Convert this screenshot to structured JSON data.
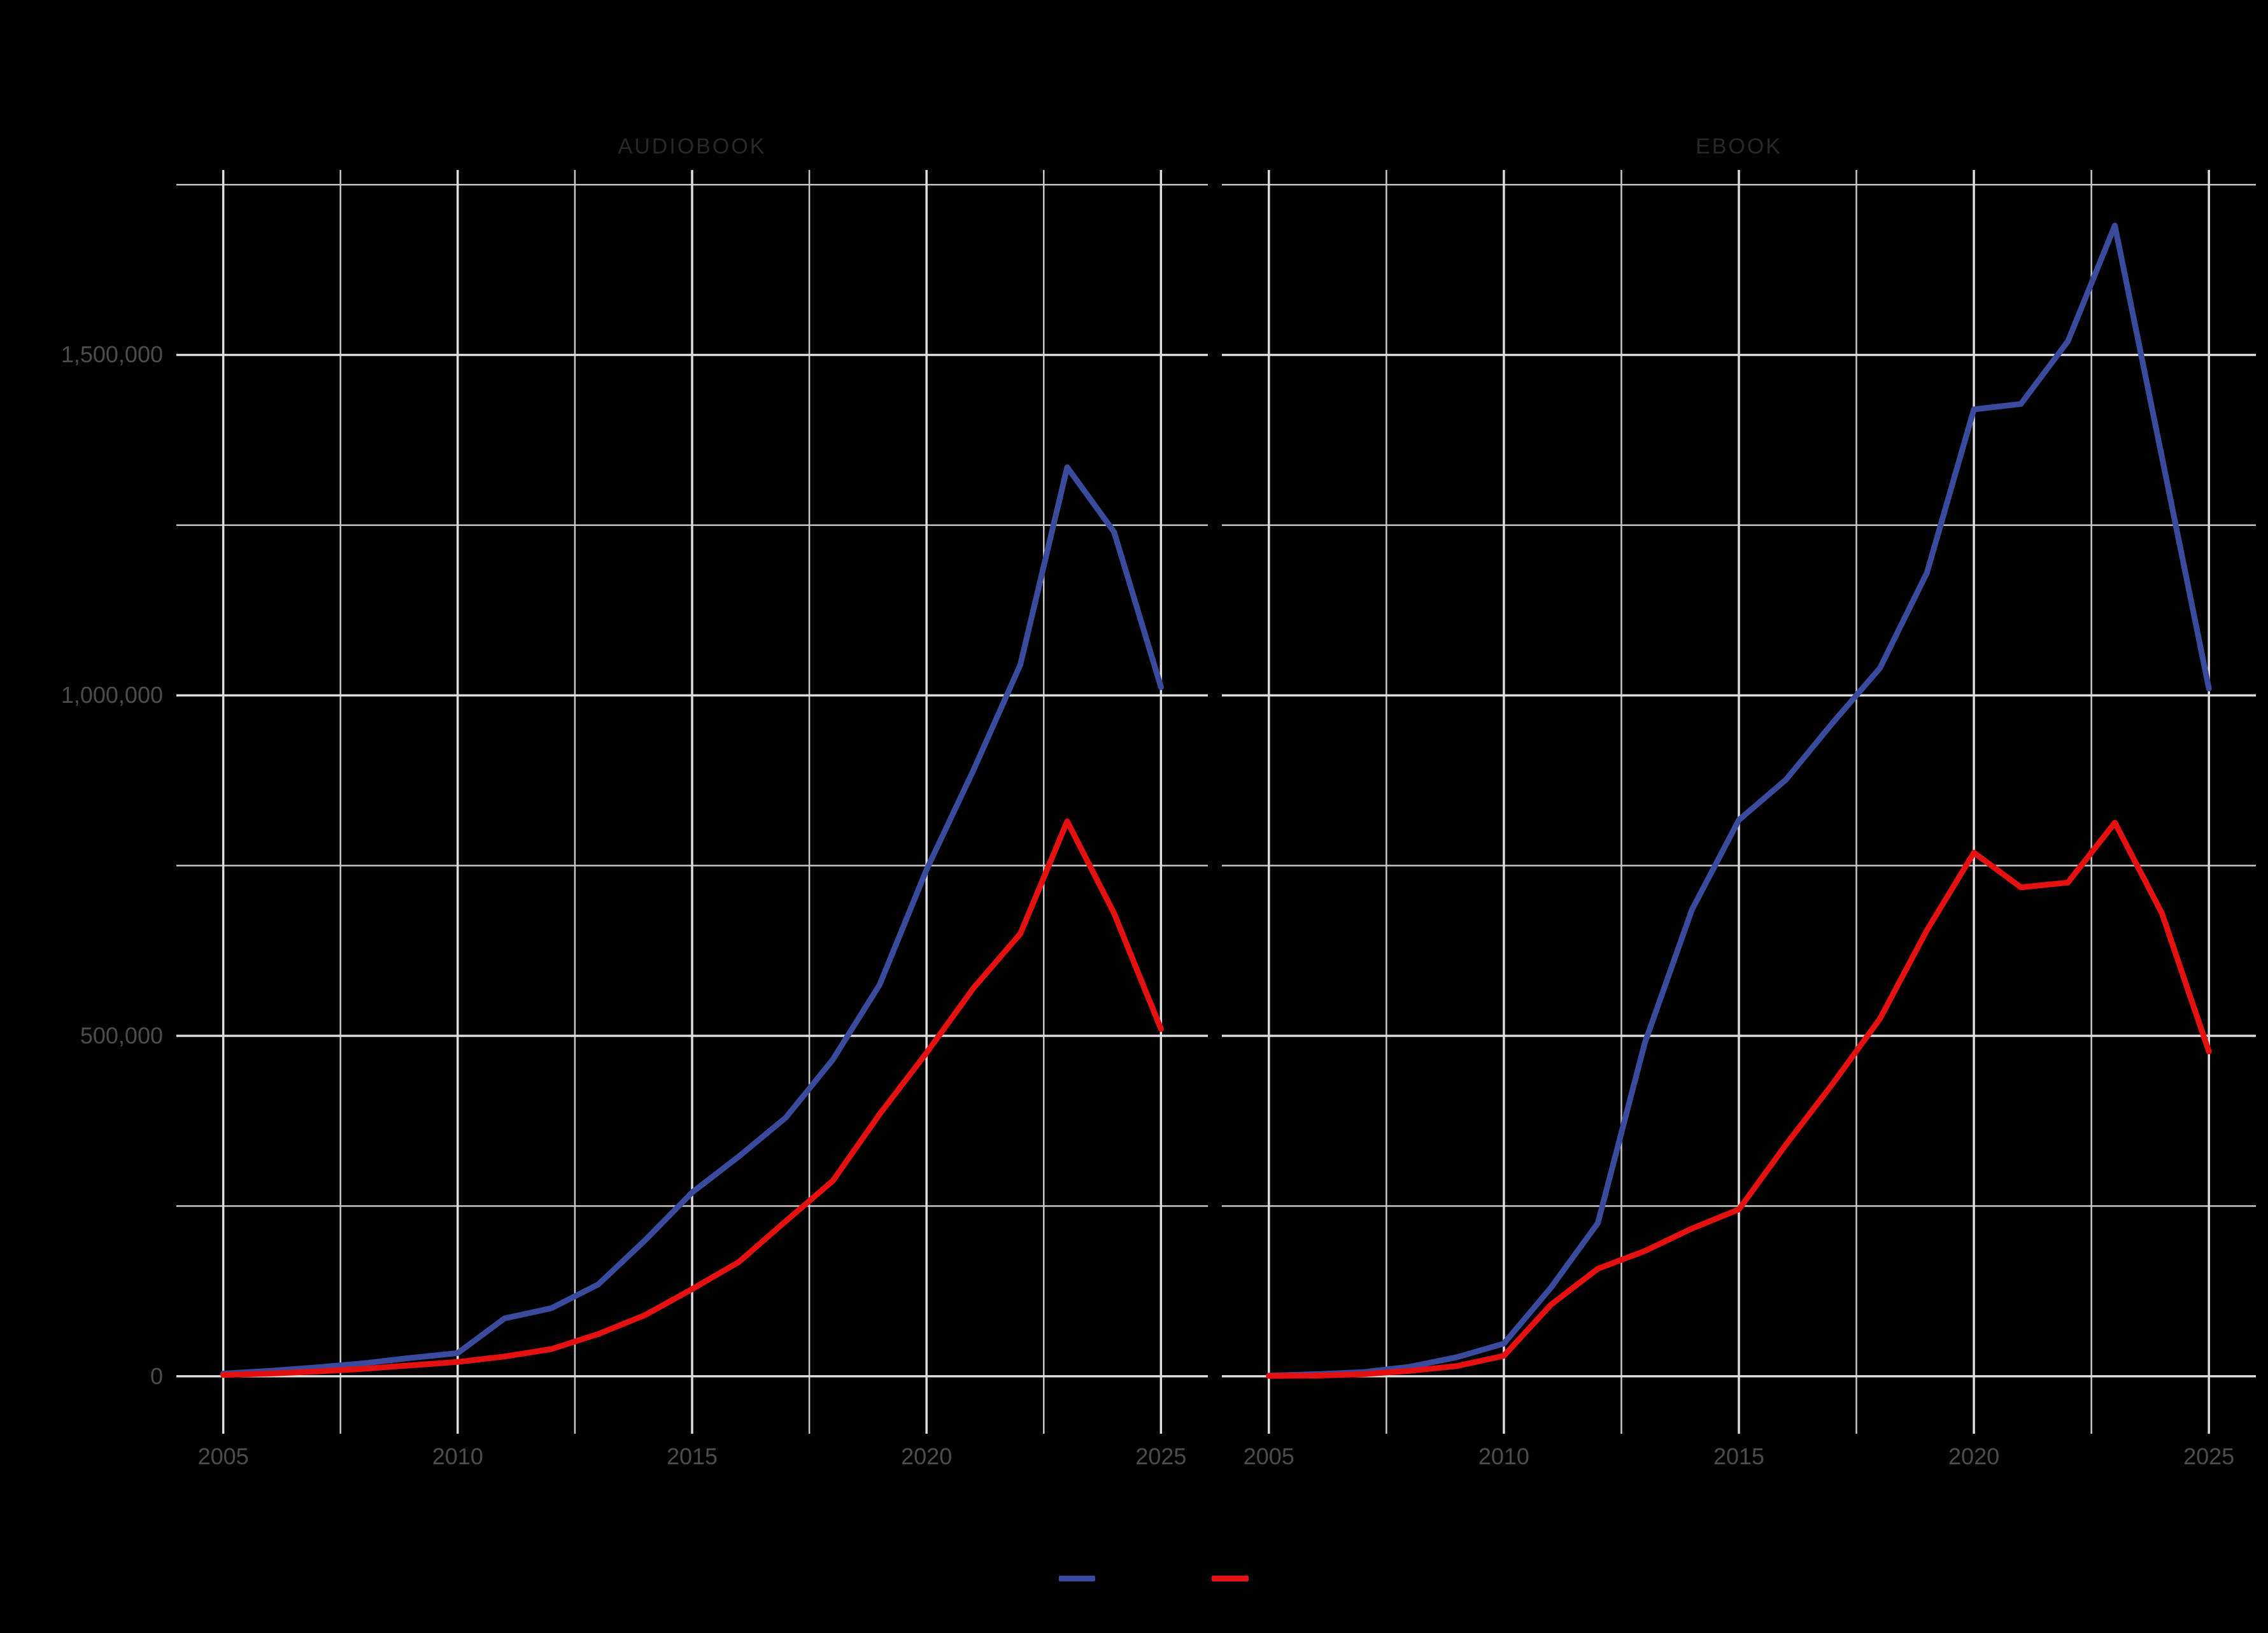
{
  "figure": {
    "background_color": "#000000",
    "gridline_major_color": "#dedede",
    "gridline_minor_color": "#c9c9c9",
    "axis_text_color": "#4c4c4c",
    "strip_title_color": "#282828"
  },
  "axes": {
    "y_tick_labels": [
      "0",
      "500,000",
      "1,000,000",
      "1,500,000"
    ],
    "x_tick_labels": [
      "2005",
      "2010",
      "2015",
      "2020",
      "2025"
    ]
  },
  "legend": {
    "items": [
      {
        "label": "",
        "color": "#3A4A9C"
      },
      {
        "label": "",
        "color": "#E51010"
      }
    ],
    "position": "bottom"
  },
  "chart_data": {
    "type": "line",
    "title": "",
    "xlabel": "",
    "ylabel": "",
    "x": [
      2005,
      2006,
      2007,
      2008,
      2009,
      2010,
      2011,
      2012,
      2013,
      2014,
      2015,
      2016,
      2017,
      2018,
      2019,
      2020,
      2021,
      2022,
      2023,
      2024,
      2025
    ],
    "x_axis_major_ticks": [
      2005,
      2010,
      2015,
      2020,
      2025
    ],
    "x_axis_minor_ticks": [
      2007.5,
      2012.5,
      2017.5,
      2022.5
    ],
    "y_axis_major_ticks": [
      0,
      500000,
      1000000,
      1500000
    ],
    "y_axis_minor_ticks": [
      250000,
      750000,
      1250000,
      1750000
    ],
    "y_axis_major_labels": [
      "0",
      "500,000",
      "1,000,000",
      "1,500,000"
    ],
    "ylim": [
      0,
      1771600
    ],
    "grid": {
      "show_major": true,
      "show_minor": true,
      "background": "#000000"
    },
    "legend_position": "bottom",
    "facets": [
      {
        "title": "AUDIOBOOK",
        "series": [
          {
            "name": "blue",
            "color": "#3A4A9C",
            "values": [
              4000,
              8000,
              13000,
              19000,
              27000,
              34000,
              85000,
              100000,
              135000,
              200000,
              270000,
              323000,
              380000,
              465000,
              575000,
              744000,
              890000,
              1045000,
              1335000,
              1240000,
              1012000
            ]
          },
          {
            "name": "red",
            "color": "#E51010",
            "values": [
              2000,
              4000,
              7000,
              11000,
              16000,
              21000,
              29000,
              40000,
              62000,
              90000,
              128000,
              168000,
              228000,
              287000,
              385000,
              475000,
              570000,
              650000,
              815000,
              680000,
              510000
            ]
          }
        ]
      },
      {
        "title": "EBOOK",
        "series": [
          {
            "name": "blue",
            "color": "#3A4A9C",
            "values": [
              1000,
              3000,
              6000,
              14000,
              28000,
              48000,
              130000,
              225000,
              490000,
              685000,
              817000,
              876000,
              960000,
              1040000,
              1180000,
              1420000,
              1428000,
              1520000,
              1690000,
              1350000,
              1010000
            ]
          },
          {
            "name": "red",
            "color": "#E51010",
            "values": [
              500,
              1000,
              3000,
              8000,
              15000,
              30000,
              105000,
              158000,
              184000,
              217000,
              245000,
              340000,
              430000,
              525000,
              655000,
              769000,
              718000,
              725000,
              813000,
              680000,
              477000
            ]
          }
        ]
      }
    ]
  }
}
